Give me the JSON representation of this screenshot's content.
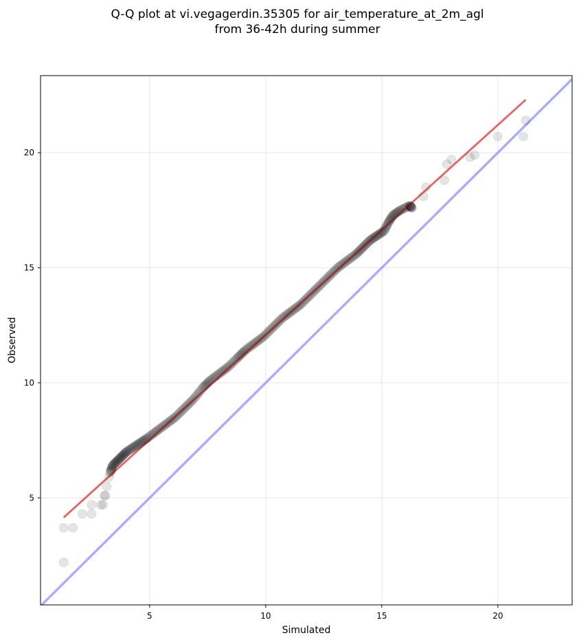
{
  "chart_data": {
    "type": "scatter",
    "title": [
      "Q-Q plot at vi.vegagerdin.35305 for air_temperature_at_2m_agl",
      "from 36-42h during summer"
    ],
    "xlabel": "Simulated",
    "ylabel": "Observed",
    "xlim": [
      0.3,
      23.2
    ],
    "ylim": [
      0.35,
      23.35
    ],
    "xticks": [
      5,
      10,
      15,
      20
    ],
    "yticks": [
      5,
      10,
      15,
      20
    ],
    "grid": true,
    "series": [
      {
        "role": "quantile-points",
        "color": "#000000",
        "x": [
          1.3,
          1.3,
          1.7,
          2.1,
          2.5,
          2.5,
          2.9,
          3.0,
          3.05,
          3.1,
          3.15,
          3.25,
          3.3,
          3.4,
          3.6,
          3.8,
          4.0,
          4.3,
          4.6,
          4.9,
          5.3,
          5.7,
          6.1,
          6.5,
          6.9,
          7.3,
          7.6,
          8.0,
          8.4,
          8.8,
          9.1,
          9.5,
          9.9,
          10.3,
          10.7,
          11.1,
          11.5,
          11.9,
          12.3,
          12.7,
          13.1,
          13.5,
          13.9,
          14.2,
          14.5,
          14.8,
          15.1,
          15.3,
          15.5,
          15.8,
          16.2,
          16.3,
          16.8,
          16.9,
          17.7,
          17.8,
          18.0,
          18.8,
          19.0,
          20.0,
          21.1,
          21.2
        ],
        "y": [
          2.2,
          3.7,
          3.7,
          4.3,
          4.3,
          4.7,
          4.7,
          4.7,
          5.1,
          5.1,
          5.5,
          5.9,
          6.1,
          6.4,
          6.6,
          6.8,
          7.0,
          7.2,
          7.4,
          7.6,
          7.9,
          8.2,
          8.5,
          8.9,
          9.3,
          9.8,
          10.1,
          10.4,
          10.7,
          11.1,
          11.4,
          11.7,
          12.0,
          12.4,
          12.8,
          13.1,
          13.4,
          13.8,
          14.2,
          14.6,
          15.0,
          15.3,
          15.6,
          15.9,
          16.2,
          16.4,
          16.6,
          17.0,
          17.3,
          17.5,
          17.7,
          17.6,
          18.1,
          18.5,
          18.8,
          19.5,
          19.7,
          19.8,
          19.9,
          20.7,
          20.7,
          21.4
        ]
      },
      {
        "role": "fit-line",
        "color": "#ff8080",
        "x": [
          1.3,
          21.2
        ],
        "y": [
          4.15,
          22.3
        ]
      },
      {
        "role": "identity-line",
        "color": "#8080ff",
        "x": [
          0.3,
          23.2
        ],
        "y": [
          0.3,
          23.2
        ]
      }
    ]
  }
}
